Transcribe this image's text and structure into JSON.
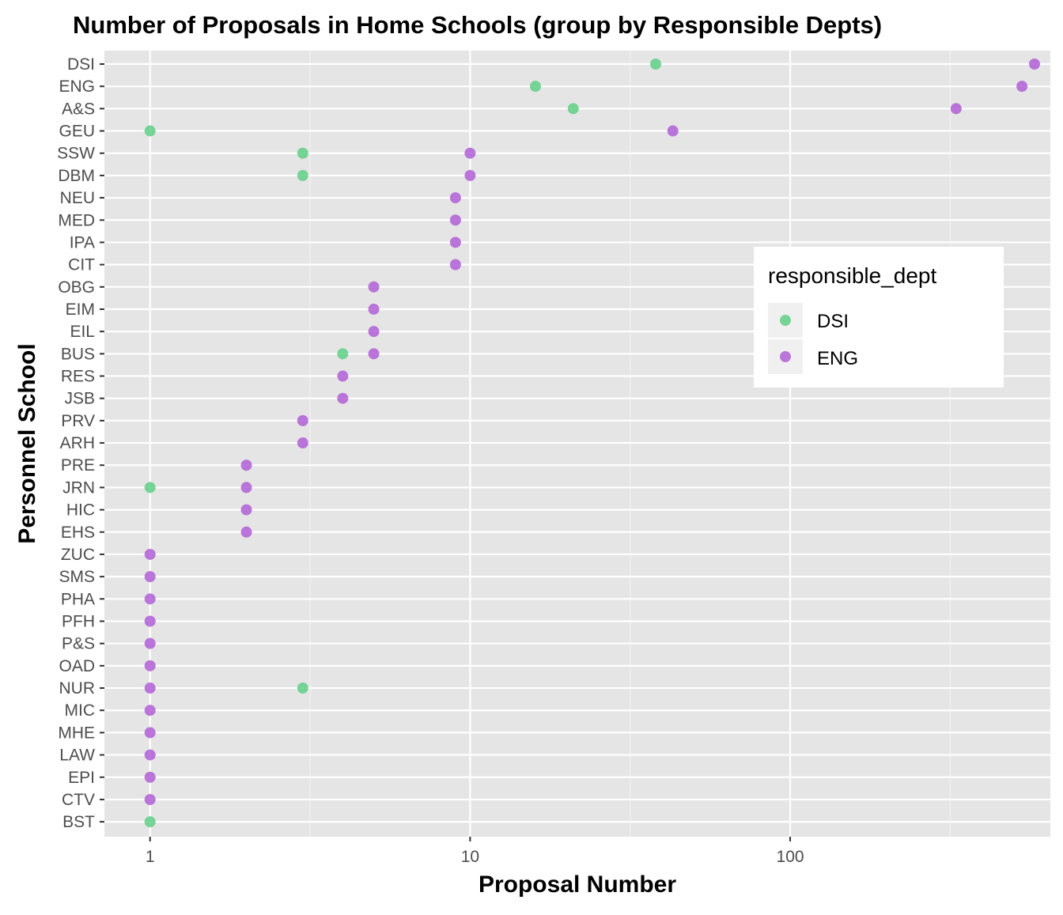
{
  "chart_data": {
    "type": "scatter",
    "title": "Number of Proposals in Home Schools (group by Responsible Depts)",
    "xlabel": "Proposal Number",
    "ylabel": "Personnel School",
    "x_scale": "log10",
    "xlim": [
      0.72,
      650
    ],
    "x_ticks": [
      1,
      10,
      100
    ],
    "x_tick_labels": [
      "1",
      "10",
      "100"
    ],
    "grid": true,
    "background": "#e5e5e5",
    "categories": [
      "DSI",
      "ENG",
      "A&S",
      "GEU",
      "SSW",
      "DBM",
      "NEU",
      "MED",
      "IPA",
      "CIT",
      "OBG",
      "EIM",
      "EIL",
      "BUS",
      "RES",
      "JSB",
      "PRV",
      "ARH",
      "PRE",
      "JRN",
      "HIC",
      "EHS",
      "ZUC",
      "SMS",
      "PHA",
      "PFH",
      "P&S",
      "OAD",
      "NUR",
      "MIC",
      "MHE",
      "LAW",
      "EPI",
      "CTV",
      "BST"
    ],
    "legend": {
      "title": "responsible_dept",
      "position": "right",
      "entries": [
        "DSI",
        "ENG"
      ]
    },
    "series": [
      {
        "name": "DSI",
        "color": "#5fcf86",
        "points": [
          {
            "y": "DSI",
            "x": 38
          },
          {
            "y": "ENG",
            "x": 16
          },
          {
            "y": "A&S",
            "x": 21
          },
          {
            "y": "GEU",
            "x": 1
          },
          {
            "y": "SSW",
            "x": 3
          },
          {
            "y": "DBM",
            "x": 3
          },
          {
            "y": "BUS",
            "x": 4
          },
          {
            "y": "JRN",
            "x": 1
          },
          {
            "y": "NUR",
            "x": 3
          },
          {
            "y": "BST",
            "x": 1
          }
        ]
      },
      {
        "name": "ENG",
        "color": "#b05fd6",
        "points": [
          {
            "y": "DSI",
            "x": 580
          },
          {
            "y": "ENG",
            "x": 530
          },
          {
            "y": "A&S",
            "x": 330
          },
          {
            "y": "GEU",
            "x": 43
          },
          {
            "y": "SSW",
            "x": 10
          },
          {
            "y": "DBM",
            "x": 10
          },
          {
            "y": "NEU",
            "x": 9
          },
          {
            "y": "MED",
            "x": 9
          },
          {
            "y": "IPA",
            "x": 9
          },
          {
            "y": "CIT",
            "x": 9
          },
          {
            "y": "OBG",
            "x": 5
          },
          {
            "y": "EIM",
            "x": 5
          },
          {
            "y": "EIL",
            "x": 5
          },
          {
            "y": "BUS",
            "x": 5
          },
          {
            "y": "RES",
            "x": 4
          },
          {
            "y": "JSB",
            "x": 4
          },
          {
            "y": "PRV",
            "x": 3
          },
          {
            "y": "ARH",
            "x": 3
          },
          {
            "y": "PRE",
            "x": 2
          },
          {
            "y": "JRN",
            "x": 2
          },
          {
            "y": "HIC",
            "x": 2
          },
          {
            "y": "EHS",
            "x": 2
          },
          {
            "y": "ZUC",
            "x": 1
          },
          {
            "y": "SMS",
            "x": 1
          },
          {
            "y": "PHA",
            "x": 1
          },
          {
            "y": "PFH",
            "x": 1
          },
          {
            "y": "P&S",
            "x": 1
          },
          {
            "y": "OAD",
            "x": 1
          },
          {
            "y": "NUR",
            "x": 1
          },
          {
            "y": "MIC",
            "x": 1
          },
          {
            "y": "MHE",
            "x": 1
          },
          {
            "y": "LAW",
            "x": 1
          },
          {
            "y": "EPI",
            "x": 1
          },
          {
            "y": "CTV",
            "x": 1
          }
        ]
      }
    ]
  }
}
